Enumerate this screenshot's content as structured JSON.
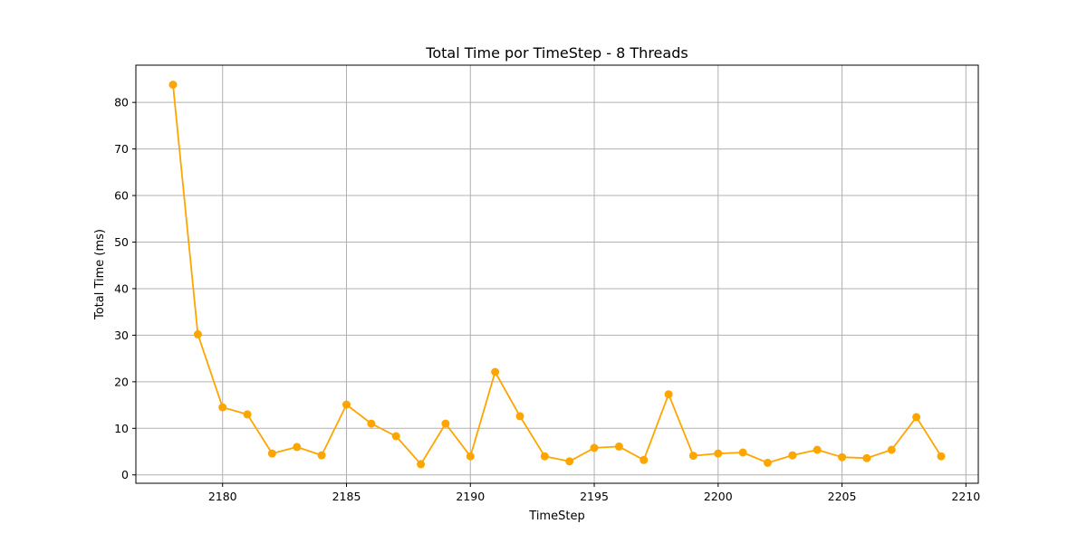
{
  "chart_data": {
    "type": "line",
    "title": "Total Time por TimeStep - 8 Threads",
    "xlabel": "TimeStep",
    "ylabel": "Total Time (ms)",
    "xlim": [
      2176.5,
      2210.5
    ],
    "ylim": [
      -1.8,
      88.0
    ],
    "x_ticks": [
      2180,
      2185,
      2190,
      2195,
      2200,
      2205,
      2210
    ],
    "y_ticks": [
      0,
      10,
      20,
      30,
      40,
      50,
      60,
      70,
      80
    ],
    "grid": true,
    "series": [
      {
        "color": "#FFA500",
        "marker": "circle",
        "x": [
          2178,
          2179,
          2180,
          2181,
          2182,
          2183,
          2184,
          2185,
          2186,
          2187,
          2188,
          2189,
          2190,
          2191,
          2192,
          2193,
          2194,
          2195,
          2196,
          2197,
          2198,
          2199,
          2200,
          2201,
          2202,
          2203,
          2204,
          2205,
          2206,
          2207,
          2208,
          2209
        ],
        "y": [
          83.8,
          30.2,
          14.5,
          13.0,
          4.6,
          6.0,
          4.2,
          15.1,
          11.0,
          8.3,
          2.3,
          11.0,
          4.0,
          22.1,
          12.6,
          4.0,
          2.9,
          5.8,
          6.1,
          3.2,
          17.3,
          4.1,
          4.6,
          4.8,
          2.6,
          4.2,
          5.4,
          3.8,
          3.6,
          5.4,
          12.4,
          4.0
        ]
      }
    ]
  }
}
